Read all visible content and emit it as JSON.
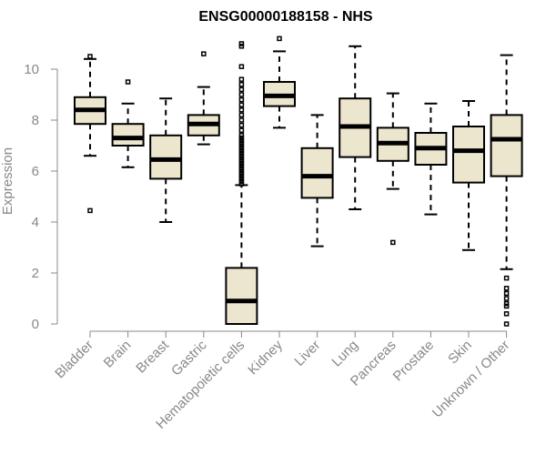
{
  "chart_data": {
    "type": "box",
    "title": "ENSG00000188158 - NHS",
    "xlabel": "",
    "ylabel": "Expression",
    "ylim": [
      0,
      11.3
    ],
    "yticks": [
      0,
      2,
      4,
      6,
      8,
      10
    ],
    "ytick_labels": [
      "0",
      "2",
      "4",
      "6",
      "8",
      "10"
    ],
    "grid": false,
    "colors": {
      "box_fill": "#ede6ce",
      "box_edge": "#000000",
      "axis": "#888888",
      "title": "#000000"
    },
    "categories": [
      "Bladder",
      "Brain",
      "Breast",
      "Gastric",
      "Hematopoietic cells",
      "Kidney",
      "Liver",
      "Lung",
      "Pancreas",
      "Prostate",
      "Skin",
      "Unknown / Other"
    ],
    "boxes": [
      {
        "category": "Bladder",
        "whisker_low": 6.6,
        "q1": 7.85,
        "median": 8.4,
        "q3": 8.9,
        "whisker_high": 10.4,
        "outliers": [
          10.5,
          4.45
        ]
      },
      {
        "category": "Brain",
        "whisker_low": 6.15,
        "q1": 7.0,
        "median": 7.3,
        "q3": 7.85,
        "whisker_high": 8.65,
        "outliers": [
          9.5
        ]
      },
      {
        "category": "Breast",
        "whisker_low": 4.0,
        "q1": 5.7,
        "median": 6.45,
        "q3": 7.4,
        "whisker_high": 8.85,
        "outliers": []
      },
      {
        "category": "Gastric",
        "whisker_low": 7.05,
        "q1": 7.4,
        "median": 7.85,
        "q3": 8.2,
        "whisker_high": 9.3,
        "outliers": [
          10.6
        ]
      },
      {
        "category": "Hematopoietic cells",
        "whisker_low": 0.0,
        "q1": 0.0,
        "median": 0.9,
        "q3": 2.2,
        "whisker_high": 5.45,
        "outliers": [
          5.5,
          5.6,
          5.7,
          5.8,
          5.9,
          6.0,
          6.1,
          6.2,
          6.3,
          6.4,
          6.5,
          6.6,
          6.7,
          6.8,
          6.9,
          7.0,
          7.1,
          7.2,
          7.3,
          7.4,
          7.6,
          7.8,
          8.0,
          8.2,
          8.4,
          8.6,
          8.8,
          9.0,
          9.2,
          9.4,
          9.6,
          10.1,
          10.9,
          11.0
        ]
      },
      {
        "category": "Kidney",
        "whisker_low": 7.7,
        "q1": 8.55,
        "median": 8.95,
        "q3": 9.5,
        "whisker_high": 10.7,
        "outliers": [
          11.2
        ]
      },
      {
        "category": "Liver",
        "whisker_low": 3.05,
        "q1": 4.95,
        "median": 5.8,
        "q3": 6.9,
        "whisker_high": 8.2,
        "outliers": []
      },
      {
        "category": "Lung",
        "whisker_low": 4.5,
        "q1": 6.55,
        "median": 7.75,
        "q3": 8.85,
        "whisker_high": 10.9,
        "outliers": []
      },
      {
        "category": "Pancreas",
        "whisker_low": 5.3,
        "q1": 6.4,
        "median": 7.1,
        "q3": 7.7,
        "whisker_high": 9.05,
        "outliers": [
          3.2
        ]
      },
      {
        "category": "Prostate",
        "whisker_low": 4.3,
        "q1": 6.25,
        "median": 6.9,
        "q3": 7.5,
        "whisker_high": 8.65,
        "outliers": []
      },
      {
        "category": "Skin",
        "whisker_low": 2.9,
        "q1": 5.55,
        "median": 6.8,
        "q3": 7.75,
        "whisker_high": 8.75,
        "outliers": []
      },
      {
        "category": "Unknown / Other",
        "whisker_low": 2.15,
        "q1": 5.8,
        "median": 7.25,
        "q3": 8.2,
        "whisker_high": 10.55,
        "outliers": [
          1.8,
          1.4,
          1.2,
          1.0,
          0.8,
          0.7,
          0.4,
          0.0
        ]
      }
    ]
  }
}
